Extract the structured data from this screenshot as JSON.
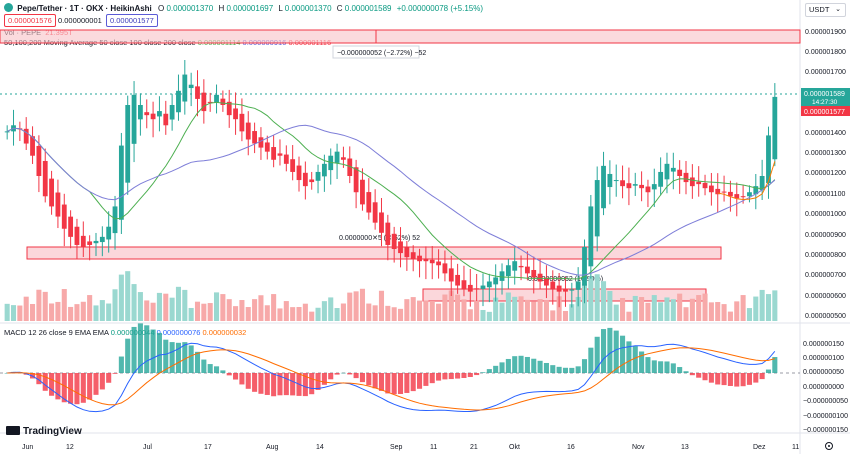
{
  "header": {
    "title": "Pepe/Tether · 1T · OKX · HeikinAshi",
    "ohlc": [
      {
        "k": "O",
        "v": "0.000001370"
      },
      {
        "k": "H",
        "v": "0.000001697"
      },
      {
        "k": "L",
        "v": "0.000001370"
      },
      {
        "k": "C",
        "v": "0.000001589"
      }
    ],
    "change": "+0.000000078 (+5.15%)",
    "sell_price": "0.000001576",
    "spread": "0.000000001",
    "buy_price": "0.000001577",
    "currency": "USDT"
  },
  "indicators": {
    "volume_label": "Vol · PEPE",
    "volume_value": "21.395T",
    "ma_label": "50,100,200 Moving Average 50 close 100 close 200 close",
    "ma_values": [
      "0.000001114",
      "0.000000916",
      "0.000001116"
    ],
    "macd_label": "MACD 12 26 close 9 EMA EMA",
    "macd_values": [
      "0.000000044",
      "0.000000076",
      "0.000000032"
    ]
  },
  "annotations": {
    "range_top": "−0.000000052 (−2.72%) −52",
    "range_mid": "0.0000000✕5 (✕.62%) 52",
    "range_low": "0.0000000052 (16.90%)"
  },
  "price_axis": {
    "ticks": [
      "0.000001900",
      "0.000001800",
      "0.000001700",
      "0.000001400",
      "0.000001300",
      "0.000001200",
      "0.000001100",
      "0.000001000",
      "0.000000900",
      "0.000000800",
      "0.000000700",
      "0.000000600",
      "0.000000500"
    ],
    "last_price": "0.000001589",
    "countdown": "14:27:30",
    "bid_price": "0.000001577"
  },
  "macd_axis": {
    "ticks": [
      "0.000000150",
      "0.000000100",
      "0.000000050",
      "0.000000000",
      "−0.000000050",
      "−0.000000100",
      "−0.000000150"
    ]
  },
  "time_axis": {
    "labels": [
      "Jun",
      "12",
      "Jul",
      "17",
      "Aug",
      "14",
      "Sep",
      "11",
      "21",
      "Okt",
      "16",
      "Nov",
      "13",
      "Dez",
      "11"
    ]
  },
  "logo": "TradingView",
  "colors": {
    "up": "#26a69a",
    "down": "#f23645",
    "ma50": "#4caf50",
    "ma100": "#7e57c2",
    "ma200": "#f57c00",
    "macd": "#2962ff",
    "signal": "#ff6d00"
  },
  "chart_data": {
    "type": "candlestick",
    "x_labels": [
      "Jun",
      "12",
      "Jul",
      "17",
      "Aug",
      "14",
      "Sep",
      "11",
      "21",
      "Okt",
      "16",
      "Nov",
      "13",
      "Dez",
      "11"
    ],
    "ylim": [
      4.8e-07,
      1.93e-06
    ],
    "close_series": [
      1.42,
      1.45,
      1.43,
      1.36,
      1.3,
      1.2,
      1.1,
      1.05,
      1.0,
      0.94,
      0.9,
      0.86,
      0.85,
      0.86,
      0.88,
      0.9,
      0.95,
      1.05,
      1.35,
      1.55,
      1.6,
      1.55,
      1.5,
      1.48,
      1.52,
      1.45,
      1.55,
      1.62,
      1.7,
      1.65,
      1.58,
      1.52,
      1.56,
      1.6,
      1.55,
      1.5,
      1.48,
      1.42,
      1.38,
      1.36,
      1.34,
      1.32,
      1.28,
      1.3,
      1.26,
      1.22,
      1.18,
      1.15,
      1.17,
      1.22,
      1.26,
      1.3,
      1.32,
      1.28,
      1.2,
      1.12,
      1.06,
      1.02,
      0.97,
      0.92,
      0.86,
      0.84,
      0.82,
      0.8,
      0.79,
      0.78,
      0.78,
      0.77,
      0.76,
      0.72,
      0.68,
      0.66,
      0.64,
      0.63,
      0.64,
      0.66,
      0.68,
      0.7,
      0.73,
      0.76,
      0.78,
      0.75,
      0.72,
      0.7,
      0.68,
      0.66,
      0.64,
      0.63,
      0.63,
      0.64,
      0.68,
      0.85,
      1.05,
      1.18,
      1.25,
      1.21,
      1.18,
      1.15,
      1.14,
      1.16,
      1.14,
      1.12,
      1.16,
      1.22,
      1.26,
      1.24,
      1.2,
      1.17,
      1.15,
      1.16,
      1.14,
      1.12,
      1.11,
      1.12,
      1.1,
      1.09,
      1.1,
      1.12,
      1.15,
      1.2,
      1.4,
      1.59
    ],
    "ma50": [
      1.42e-06,
      1.41e-06,
      1.36e-06,
      1.26e-06,
      1.16e-06,
      1.06e-06,
      9.8e-07,
      8.9e-07,
      8.2e-07,
      7.7e-07,
      7.5e-07,
      7.8e-07,
      8.8e-07,
      9.9e-07,
      1.08e-06,
      1.11e-06
    ],
    "ma100": [
      1.48e-06,
      1.46e-06,
      1.44e-06,
      1.41e-06,
      1.37e-06,
      1.31e-06,
      1.25e-06,
      1.18e-06,
      1.12e-06,
      1.05e-06,
      9.7e-07,
      9.2e-07,
      9e-07,
      8.9e-07,
      8.9e-07,
      9.2e-07
    ],
    "support_zones": [
      [
        7.8e-07,
        8.4e-07
      ],
      [
        5.9e-07,
        6.4e-07
      ]
    ],
    "resistance_zone": [
      1.85e-06,
      1.92e-06
    ],
    "macd": {
      "macd": 4.4e-08,
      "signal": 7.6e-08,
      "histogram": 3.2e-08,
      "ylim": [
        -1.6e-07,
        1.7e-07
      ]
    }
  }
}
